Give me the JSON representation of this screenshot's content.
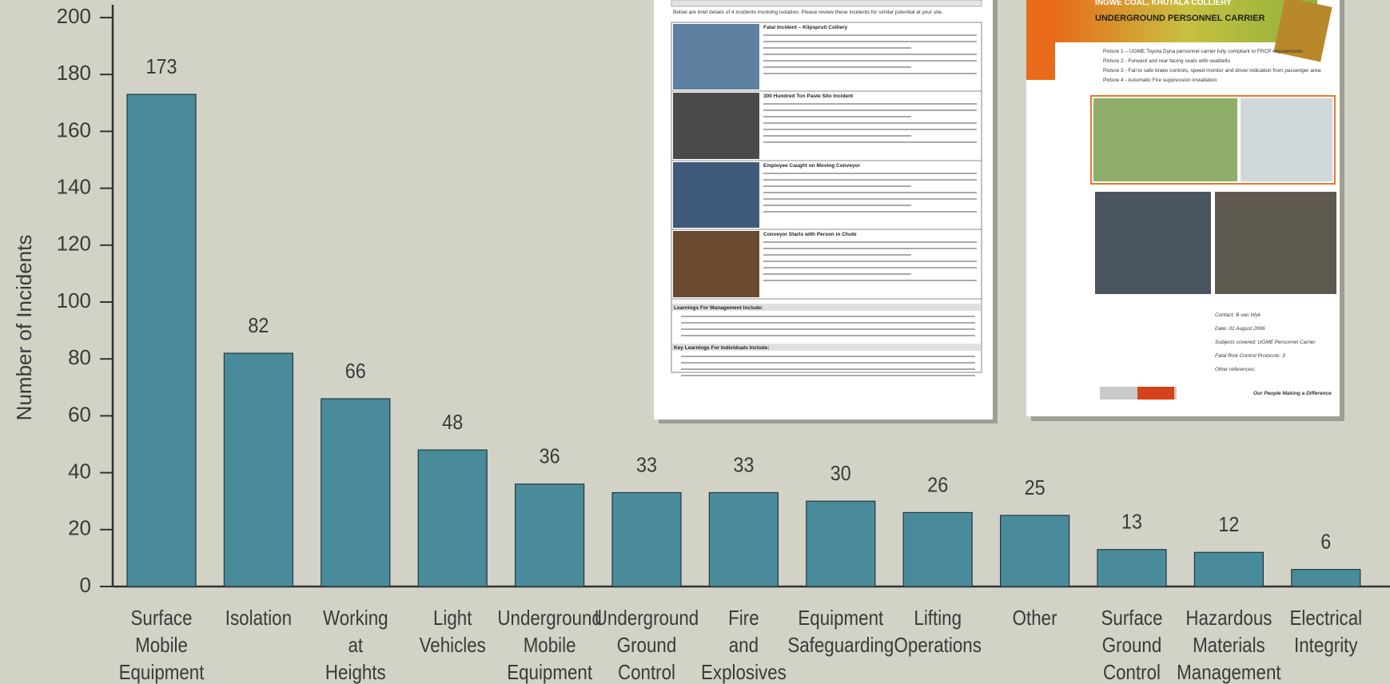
{
  "chart_data": {
    "type": "bar",
    "y_label": "Number of Incidents",
    "categories": [
      "Surface Mobile Equipment",
      "Isolation",
      "Working at Heights",
      "Light Vehicles",
      "Underground Mobile Equipment",
      "Underground Ground Control",
      "Fire and Explosives",
      "Equipment Safeguarding",
      "Lifting Operations",
      "Other",
      "Surface Ground Control",
      "Hazardous Materials Management",
      "Electrical Integrity"
    ],
    "values": [
      173,
      82,
      66,
      48,
      36,
      33,
      33,
      30,
      26,
      25,
      13,
      12,
      6
    ],
    "color": "#4a8b9b",
    "ylim": [
      0,
      200
    ],
    "yticks": [
      0,
      20,
      40,
      60,
      80,
      100,
      120,
      140,
      160,
      180,
      200
    ],
    "data_labels": true
  },
  "documents": {
    "isolation_bulletin": {
      "intro": "Below are brief details of 4 incidents involving isolation. Please review these incidents for similar potential at your site.",
      "incidents": [
        "Fatal Incident – Klipspruit Colliery",
        "300 Hundred Ton Paste Silo Incident",
        "Employee Caught on Moving Conveyor",
        "Conveyor Starts with Person in Chute"
      ],
      "learnings": [
        "Learnings For Management Include:",
        "Key Learnings For Individuals Include:"
      ]
    },
    "carrier_bulletin": {
      "site": "INGWE COAL, KHUTALA COLLIERY",
      "title": "UNDERGROUND PERSONNEL CARRIER",
      "bullets": [
        "Picture 1 – UGME Toyota Dyna personnel carrier fully compliant to FRCP requirements",
        "Picture 2 - Forward and rear facing seats with seatbelts",
        "Picture 3 - Fail to safe brake controls, speed monitor and driver indication from passenger area",
        "Picture 4 - Automatic Fire suppression installation"
      ],
      "contact": [
        "Contact: B van Wyk",
        "Date: 01 August 2006",
        "Subjects covered: UGME Personnel Carrier",
        "Fatal Risk Control Protocols: 3",
        "Other references:"
      ],
      "footer": "Our People Making a Difference"
    }
  }
}
